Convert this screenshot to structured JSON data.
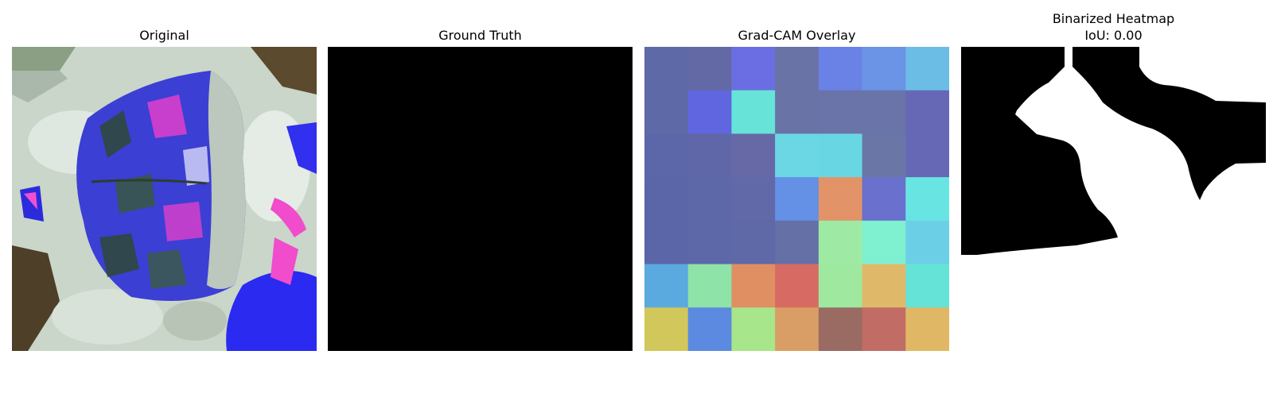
{
  "panels": [
    {
      "title": "Original"
    },
    {
      "title": "Ground Truth"
    },
    {
      "title": "Grad-CAM Overlay"
    },
    {
      "title_line1": "Binarized Heatmap",
      "title_line2": "IoU: 0.00"
    }
  ],
  "gradcam": {
    "grid_rows": 7,
    "grid_cols": 7,
    "cell_colors": [
      [
        "#5e6aa7",
        "#6369a4",
        "#6b6ee2",
        "#6a73a5",
        "#6a81e6",
        "#6b93e6",
        "#6cbde6"
      ],
      [
        "#5e6aa7",
        "#6066e0",
        "#67e3d8",
        "#6a73a5",
        "#6a74a8",
        "#6a74a8",
        "#6668b5"
      ],
      [
        "#5c67a9",
        "#6067a8",
        "#6669a6",
        "#6bd7e4",
        "#69d6e3",
        "#6a77a6",
        "#6668b5"
      ],
      [
        "#5b66a9",
        "#5d68a8",
        "#6169a8",
        "#6490e6",
        "#e29468",
        "#6a70cd",
        "#68e5e2"
      ],
      [
        "#5b66a9",
        "#5d68a8",
        "#5f69a8",
        "#6570a6",
        "#9eeaa5",
        "#7ff0d0",
        "#6bd0e5"
      ],
      [
        "#5aaadf",
        "#8de3a8",
        "#df8f62",
        "#d76b63",
        "#9fe8a0",
        "#e0b86a",
        "#64e3d6"
      ],
      [
        "#d1c75a",
        "#5b8ae0",
        "#a7e68a",
        "#d99e65",
        "#9a6b62",
        "#c16c64",
        "#e0b865"
      ]
    ]
  },
  "colors": {
    "ground_truth": "#000000",
    "binarized_foreground": "#ffffff",
    "binarized_background": "#000000"
  }
}
